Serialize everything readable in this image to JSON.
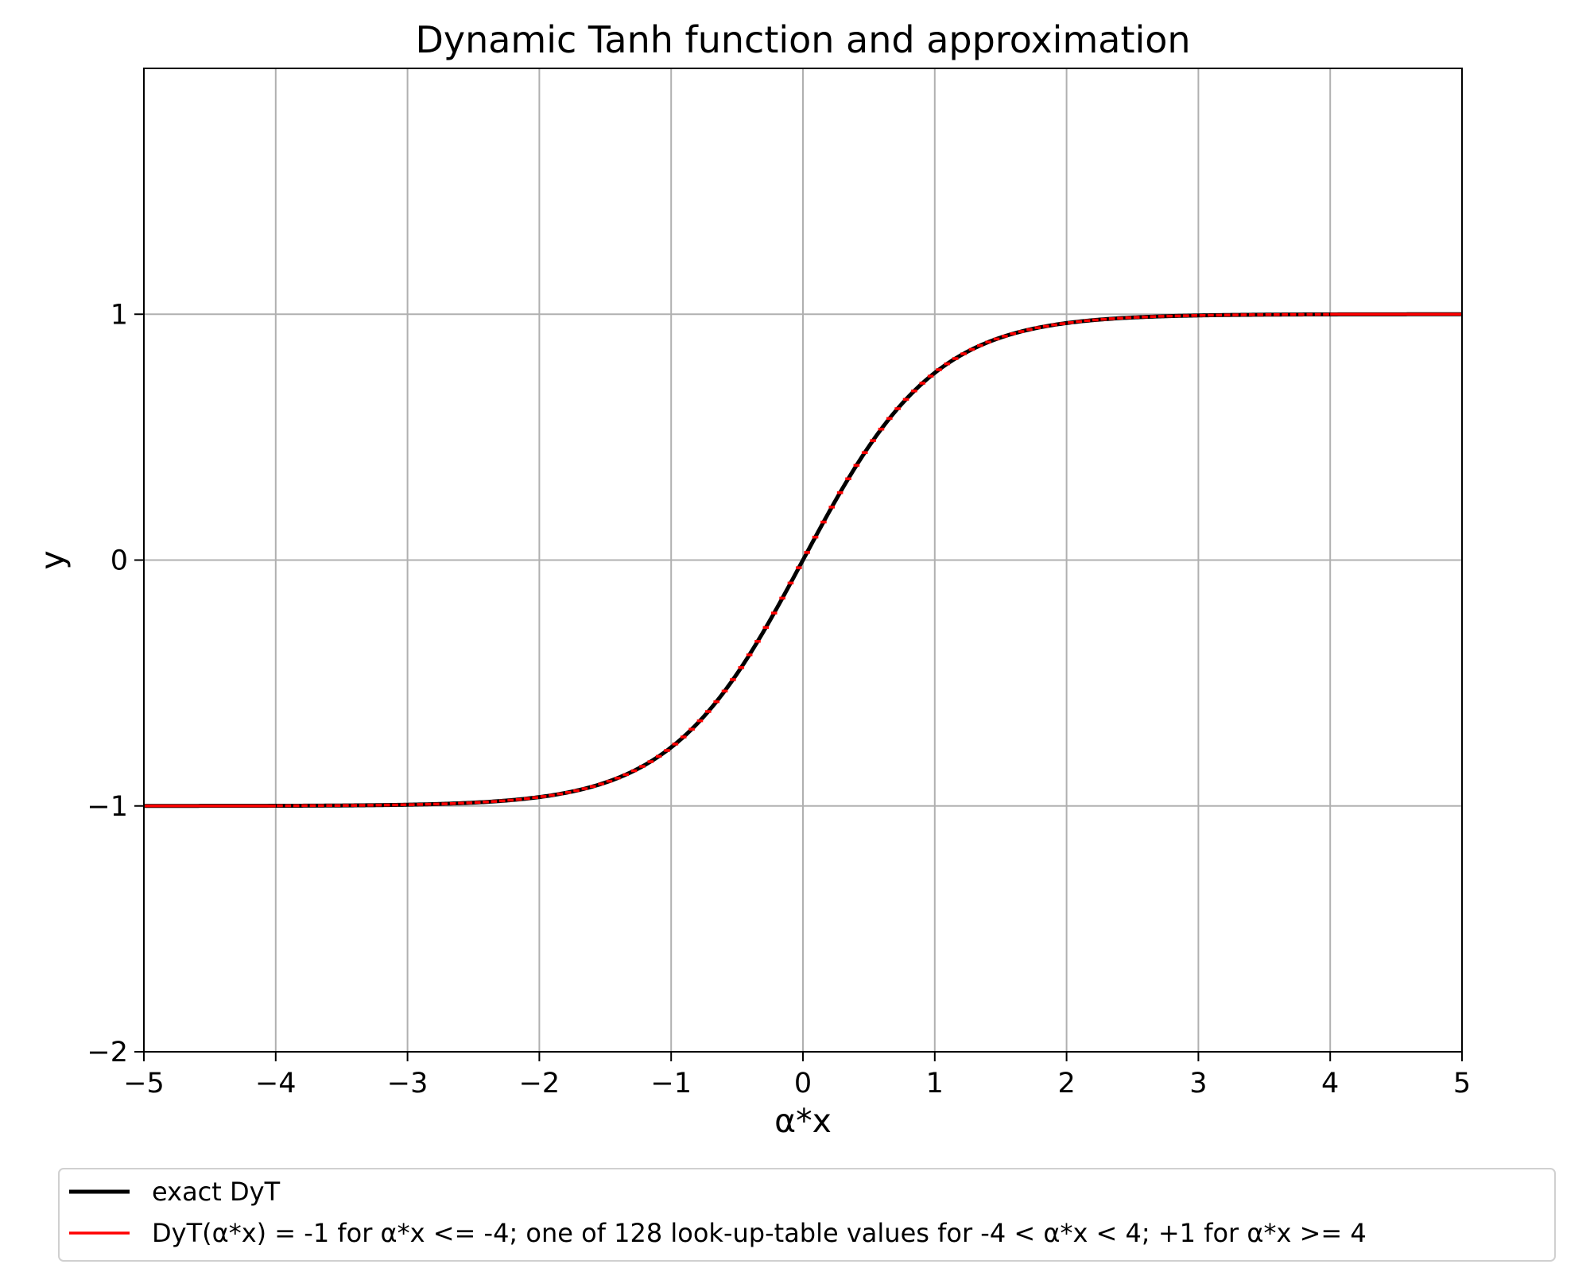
{
  "chart_data": {
    "type": "line",
    "title": "Dynamic Tanh function and approximation",
    "xlabel": "α*x",
    "ylabel": "y",
    "xlim": [
      -5,
      5
    ],
    "ylim": [
      -2,
      2
    ],
    "x_ticks": [
      -5,
      -4,
      -3,
      -2,
      -1,
      0,
      1,
      2,
      3,
      4,
      5
    ],
    "x_tick_labels": [
      "−5",
      "−4",
      "−3",
      "−2",
      "−1",
      "0",
      "1",
      "2",
      "3",
      "4",
      "5"
    ],
    "y_ticks": [
      -2,
      -1,
      0,
      1
    ],
    "y_tick_labels": [
      "−2",
      "−1",
      "0",
      "1"
    ],
    "grid": true,
    "legend_position": "below plot",
    "series": [
      {
        "name": "exact DyT",
        "color": "#000000",
        "function": "tanh",
        "x_range": [
          -5,
          5
        ]
      },
      {
        "name": "DyT(α*x) = -1 for α*x <= -4; one of 128 look-up-table values for -4 < α*x < 4; +1 for α*x >= 4",
        "color": "#ff0000",
        "function": "piecewise lookup-table approximation of tanh",
        "lut_size": 128,
        "lut_range": [
          -4,
          4
        ],
        "clamp_low": -1,
        "clamp_high": 1
      }
    ]
  }
}
